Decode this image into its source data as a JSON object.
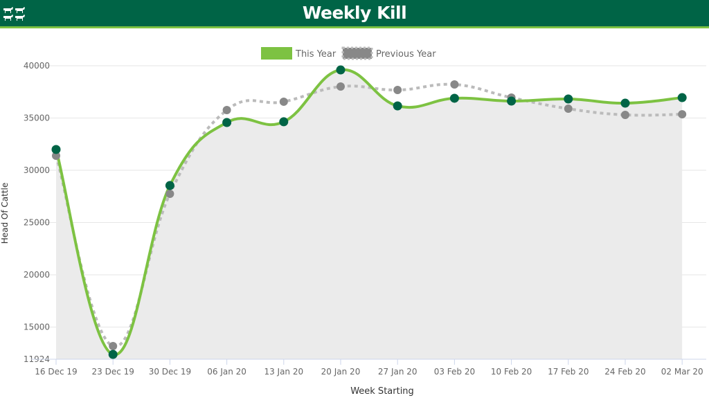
{
  "header": {
    "title": "Weekly Kill",
    "logo_icon": "cattle-icon"
  },
  "colors": {
    "header_bg": "#006446",
    "accent": "#7dc242",
    "this_year_line": "#7dc242",
    "this_year_marker": "#006446",
    "previous_year_line": "#bbbbbb",
    "previous_year_marker": "#888888",
    "area_fill": "#ebebeb"
  },
  "chart_data": {
    "type": "line",
    "title": "",
    "xlabel": "Week Starting",
    "ylabel": "Head Of Cattle",
    "ylim": [
      11924,
      41000
    ],
    "yticks": [
      11924,
      15000,
      20000,
      25000,
      30000,
      35000,
      40000
    ],
    "grid": true,
    "legend": "top-center",
    "categories": [
      "16 Dec 19",
      "23 Dec 19",
      "30 Dec 19",
      "06 Jan 20",
      "13 Jan 20",
      "20 Jan 20",
      "27 Jan 20",
      "03 Feb 20",
      "10 Feb 20",
      "17 Feb 20",
      "24 Feb 20",
      "02 Mar 20"
    ],
    "series": [
      {
        "name": "This Year",
        "values": [
          31990,
          12380,
          28540,
          34570,
          34640,
          39600,
          36160,
          36890,
          36620,
          36820,
          36420,
          36950
        ]
      },
      {
        "name": "Previous Year",
        "values": [
          31390,
          13180,
          27750,
          35760,
          36560,
          38010,
          37680,
          38210,
          36950,
          35890,
          35300,
          35360
        ]
      }
    ]
  }
}
